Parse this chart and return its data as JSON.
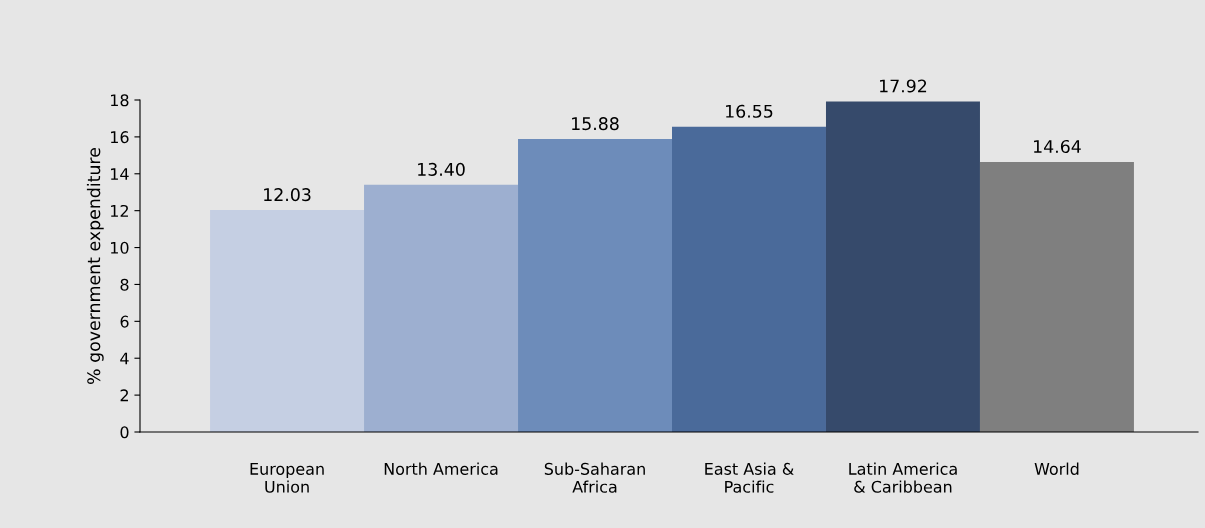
{
  "chart_data": {
    "type": "bar",
    "ylabel": "% government expenditure",
    "categories": [
      "European\nUnion",
      "North America",
      "Sub-Saharan\nAfrica",
      "East Asia &\nPacific",
      "Latin America\n& Caribbean",
      "World"
    ],
    "values": [
      12.03,
      13.4,
      15.88,
      16.55,
      17.92,
      14.64
    ],
    "value_labels": [
      "12.03",
      "13.40",
      "15.88",
      "16.55",
      "17.92",
      "14.64"
    ],
    "colors": [
      "#c5cfe3",
      "#9dafd0",
      "#6d8cba",
      "#4a6a9a",
      "#364a6b",
      "#7f7f7f"
    ],
    "ylim": [
      0,
      18
    ],
    "yticks": [
      0,
      2,
      4,
      6,
      8,
      10,
      12,
      14,
      16,
      18
    ],
    "grid": false,
    "legend": false
  }
}
